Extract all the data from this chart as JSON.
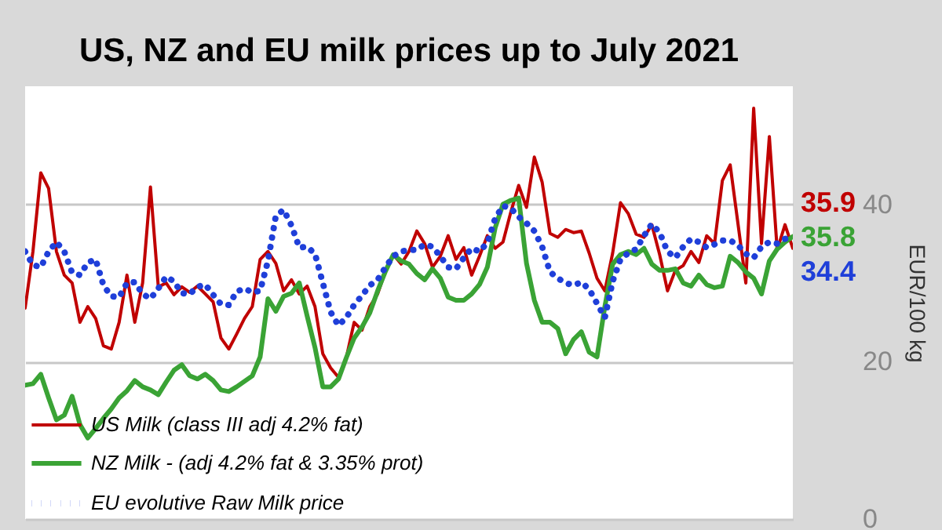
{
  "chart_data": {
    "type": "line",
    "title": "US, NZ and EU milk prices up to July 2021",
    "ylabel": "EUR/100 kg",
    "categories": [
      null,
      null,
      null,
      null,
      null,
      null,
      null,
      null,
      null,
      null,
      null,
      null,
      null,
      null,
      null,
      null,
      null,
      null,
      null,
      null,
      null,
      null,
      null,
      null,
      null,
      null,
      null,
      null,
      null,
      null,
      null,
      null,
      null,
      null,
      null,
      null,
      null,
      null,
      null,
      null,
      null,
      null,
      null,
      null,
      null,
      null,
      null,
      null,
      null,
      null,
      null,
      null,
      null,
      null,
      null,
      null,
      null,
      null,
      null,
      null,
      null,
      null,
      null,
      null,
      null,
      null,
      null,
      null,
      null,
      null,
      null,
      null,
      null,
      null,
      null,
      null,
      null,
      null,
      null,
      null,
      null,
      null,
      null,
      null,
      null,
      null,
      null,
      null,
      null,
      null,
      null,
      null,
      null,
      null,
      null,
      null,
      null,
      null,
      null
    ],
    "series": [
      {
        "name": "US Milk (class III adj 4.2% fat)",
        "color": "#c00000",
        "line_style": "solid",
        "values": [
          26.8,
          34,
          44,
          42,
          34,
          31,
          30,
          25,
          27,
          25.5,
          22,
          21.6,
          25,
          31,
          25,
          30,
          42.2,
          29.5,
          30,
          28.5,
          29.5,
          28.8,
          29.6,
          28.6,
          27.6,
          23,
          21.6,
          23.5,
          25.5,
          27,
          33,
          34,
          32.5,
          29,
          30.4,
          28.6,
          29.6,
          27,
          21,
          19.2,
          18,
          20.5,
          25,
          24,
          27,
          28.6,
          31.5,
          33.6,
          32.4,
          34,
          36.6,
          35,
          32,
          33.4,
          36,
          33,
          34.5,
          31,
          33.4,
          36,
          34.4,
          35.2,
          39,
          42.4,
          39.6,
          46,
          42.8,
          36.3,
          35.8,
          36.8,
          36.4,
          36.6,
          33.8,
          30.6,
          29,
          33.8,
          40.2,
          38.8,
          36.2,
          35.8,
          37.4,
          33.6,
          29,
          31.6,
          32.2,
          34,
          32.6,
          36,
          35,
          43,
          45,
          37.5,
          30,
          52.2,
          35,
          48.6,
          34.2,
          37.4,
          34.4
        ]
      },
      {
        "name": "NZ Milk - (adj 4.2% fat & 3.35% prot)",
        "color": "#3aa335",
        "line_style": "solid",
        "values": [
          17,
          17.2,
          18.4,
          15.4,
          12.6,
          13.2,
          15.6,
          12,
          10.3,
          11.5,
          12.8,
          14,
          15.4,
          16.3,
          17.6,
          16.8,
          16.4,
          15.8,
          17.4,
          18.9,
          19.6,
          18.2,
          17.8,
          18.4,
          17.6,
          16.4,
          16.2,
          16.8,
          17.5,
          18.2,
          20.6,
          28,
          26.4,
          28.3,
          28.7,
          30,
          25.8,
          21.8,
          16.8,
          16.8,
          17.8,
          20.5,
          23,
          24.4,
          26.2,
          29,
          31.5,
          33.6,
          32.8,
          32.4,
          31.2,
          30.4,
          31.8,
          30.6,
          28.2,
          27.8,
          27.8,
          28.6,
          29.8,
          32,
          37,
          40,
          40.5,
          40.8,
          32.5,
          27.8,
          25,
          25,
          24.2,
          21,
          22.8,
          23.8,
          21.2,
          20.6,
          27,
          32.4,
          33.6,
          34,
          33.6,
          34.4,
          32.4,
          31.6,
          31.6,
          31.8,
          30,
          29.6,
          31,
          29.8,
          29.4,
          29.6,
          33.4,
          32.6,
          31.4,
          30.6,
          28.6,
          32.8,
          34.3,
          35.2,
          35.9
        ]
      },
      {
        "name": "EU evolutive Raw Milk price",
        "color": "#1f3fd9",
        "line_style": "dotted",
        "values": [
          34,
          32.3,
          32,
          34,
          35.2,
          34,
          31.3,
          31,
          32.6,
          33,
          29.7,
          28.3,
          28.2,
          30,
          30.1,
          28.6,
          28,
          29.3,
          30.8,
          30.2,
          28.7,
          28.6,
          29.5,
          29.8,
          28.5,
          27.3,
          27.2,
          28.9,
          29.3,
          28.8,
          29,
          32.8,
          38.5,
          39.3,
          37.3,
          34.5,
          34.6,
          33.7,
          30,
          26.3,
          24.6,
          25.6,
          27.2,
          28.4,
          29.7,
          30.4,
          32,
          33.4,
          34,
          34.2,
          34.2,
          34.9,
          34.6,
          33.4,
          32,
          31.8,
          33.2,
          34.4,
          34,
          35.1,
          38.2,
          39.8,
          39.5,
          38.4,
          37.6,
          36.6,
          34.6,
          31.4,
          30.6,
          30,
          29.7,
          30.1,
          29.2,
          27.4,
          25.6,
          30.2,
          33,
          33.8,
          34.3,
          36,
          37.5,
          36.4,
          34,
          33.2,
          34.6,
          35.6,
          35.2,
          34.5,
          34.9,
          35.4,
          35.4,
          34.8,
          33.7,
          33.2,
          34.6,
          35.2,
          35,
          35.6,
          35.8
        ]
      }
    ],
    "annotations": [
      "35.9",
      "35.8",
      "34.4"
    ],
    "ylim": [
      0,
      55
    ],
    "yticks": [
      0,
      20,
      40
    ],
    "grid": "y",
    "legend": "bottom left",
    "tick_labels": "y"
  }
}
